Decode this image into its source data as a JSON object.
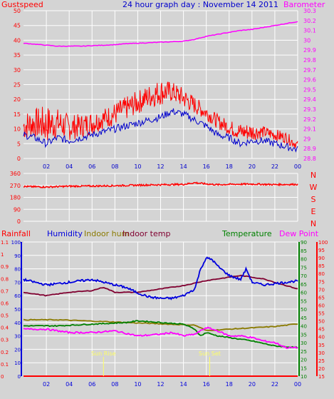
{
  "colors": {
    "gust": "#ff0000",
    "wind": "#0000cc",
    "baro": "#ff00ff",
    "dir": "#ff0000",
    "rain": "#ff0000",
    "humidity": "#0000dd",
    "indoor_hum": "#8a7a00",
    "indoor_temp": "#800030",
    "temperature": "#008000",
    "dewpoint": "#ff00ff",
    "sun": "#ffff66",
    "grid": "#ffffff",
    "bg": "#d4d4d4"
  },
  "chart_data": [
    {
      "type": "line",
      "name": "wind-baro",
      "title": "24 hour graph day : November 14 2011",
      "left_axis_label": "Gustspeed",
      "right_axis_label": "Barometer",
      "ylim_left": [
        0,
        50
      ],
      "left_ticks": [
        "0",
        "5",
        "10",
        "15",
        "20",
        "25",
        "30",
        "35",
        "40",
        "45",
        "50"
      ],
      "ylim_right": [
        28.8,
        30.3
      ],
      "right_ticks": [
        "28.8",
        "28.9",
        "29",
        "29.1",
        "29.2",
        "29.3",
        "29.4",
        "29.5",
        "29.6",
        "29.7",
        "29.8",
        "29.9",
        "30",
        "30.1",
        "30.2",
        "30.3"
      ],
      "x_ticks": [
        "02",
        "04",
        "06",
        "08",
        "10",
        "12",
        "14",
        "16",
        "18",
        "20",
        "22",
        "00"
      ],
      "gust_envelope": {
        "hours": [
          0,
          1,
          2,
          3,
          4,
          5,
          6,
          7,
          8,
          9,
          10,
          11,
          12,
          13,
          14,
          15,
          16,
          17,
          18,
          19,
          20,
          21,
          22,
          23,
          24
        ],
        "low": [
          6,
          7,
          5,
          7,
          6,
          7,
          8,
          10,
          11,
          13,
          15,
          17,
          18,
          19,
          17,
          15,
          13,
          10,
          8,
          6,
          6,
          7,
          6,
          5,
          3
        ],
        "high": [
          16,
          17,
          18,
          17,
          15,
          15,
          16,
          17,
          19,
          21,
          23,
          25,
          27,
          26,
          24,
          21,
          18,
          15,
          13,
          12,
          12,
          11,
          10,
          9,
          6
        ]
      },
      "wind_speed": {
        "hours": [
          0,
          1,
          2,
          3,
          4,
          5,
          6,
          7,
          8,
          9,
          10,
          11,
          12,
          13,
          14,
          15,
          16,
          17,
          18,
          19,
          20,
          21,
          22,
          23,
          24
        ],
        "values": [
          8,
          7,
          5,
          7,
          6,
          7,
          8,
          9,
          10,
          11,
          12,
          13,
          14,
          16,
          15,
          13,
          11,
          8,
          7,
          5,
          6,
          6,
          5,
          4,
          3
        ]
      },
      "barometer": {
        "hours": [
          0,
          1,
          2,
          3,
          4,
          5,
          6,
          7,
          8,
          9,
          10,
          11,
          12,
          13,
          14,
          15,
          16,
          17,
          18,
          19,
          20,
          21,
          22,
          23,
          24
        ],
        "values": [
          29.97,
          29.96,
          29.95,
          29.94,
          29.94,
          29.94,
          29.945,
          29.95,
          29.955,
          29.965,
          29.97,
          29.975,
          29.98,
          29.985,
          29.99,
          30.01,
          30.04,
          30.06,
          30.08,
          30.1,
          30.11,
          30.13,
          30.15,
          30.17,
          30.19
        ]
      }
    },
    {
      "type": "line",
      "name": "wind-direction",
      "ylim": [
        0,
        360
      ],
      "left_ticks": [
        "0",
        "90",
        "180",
        "270",
        "360"
      ],
      "compass_labels": [
        "N",
        "W",
        "S",
        "E",
        "N"
      ],
      "direction": {
        "hours": [
          0,
          2,
          4,
          6,
          8,
          10,
          12,
          14,
          15,
          16,
          17,
          18,
          20,
          22,
          24
        ],
        "values": [
          262,
          258,
          264,
          265,
          268,
          272,
          275,
          278,
          290,
          281,
          275,
          278,
          280,
          276,
          278
        ]
      }
    },
    {
      "type": "line",
      "name": "climate",
      "labels": [
        "Rainfall",
        "Humidity",
        "Indoor hum",
        "Indoor temp",
        "Temperature",
        "Dew Point"
      ],
      "rain_axis": {
        "ylim": [
          0,
          1.1
        ],
        "ticks": [
          "0",
          "0.1",
          "0.2",
          "0.3",
          "0.4",
          "0.5",
          "0.6",
          "0.7",
          "0.8",
          "0.9",
          "1",
          "1.1"
        ]
      },
      "humidity_axis": {
        "ylim": [
          0,
          100
        ],
        "ticks": [
          "0",
          "10",
          "20",
          "30",
          "40",
          "50",
          "60",
          "70",
          "80",
          "90",
          "100"
        ]
      },
      "temp_axis": {
        "ylim": [
          10,
          90
        ],
        "ticks": [
          "10",
          "15",
          "20",
          "25",
          "30",
          "35",
          "40",
          "45",
          "50",
          "55",
          "60",
          "65",
          "70",
          "75",
          "80",
          "85",
          "90"
        ]
      },
      "dew_axis": {
        "ylim": [
          15,
          100
        ],
        "ticks": [
          "15",
          "20",
          "25",
          "30",
          "35",
          "40",
          "45",
          "50",
          "55",
          "60",
          "65",
          "70",
          "75",
          "80",
          "85",
          "90",
          "95",
          "100"
        ]
      },
      "humidity": {
        "hours": [
          0,
          1,
          2,
          3,
          4,
          5,
          6,
          7,
          8,
          9,
          10,
          11,
          12,
          13,
          14,
          15,
          15.5,
          16,
          16.5,
          17,
          18,
          19,
          19.5,
          20,
          21,
          22,
          23,
          24
        ],
        "values": [
          72,
          70,
          68,
          69,
          70,
          71,
          72,
          70,
          68,
          66,
          62,
          59,
          58,
          58,
          60,
          65,
          80,
          88,
          87,
          82,
          75,
          72,
          80,
          70,
          68,
          69,
          70,
          71
        ]
      },
      "indoor_hum": {
        "hours": [
          0,
          3,
          6,
          9,
          12,
          15,
          16,
          18,
          20,
          22,
          23,
          24
        ],
        "values": [
          42,
          42,
          41,
          40,
          39,
          38,
          34,
          35,
          36,
          37,
          38,
          39
        ]
      },
      "indoor_temp": {
        "hours": [
          0,
          2,
          4,
          6,
          7,
          8,
          10,
          12,
          14,
          16,
          18,
          19,
          20,
          21,
          22,
          24
        ],
        "values": [
          60,
          58,
          60,
          61,
          63,
          60,
          60,
          62,
          64,
          67,
          69,
          70,
          69,
          68,
          66,
          62
        ]
      },
      "temperature": {
        "hours": [
          0,
          3,
          6,
          9,
          10,
          12,
          14,
          15,
          15.5,
          16,
          17,
          18,
          20,
          22,
          24
        ],
        "values": [
          40,
          40,
          41,
          42,
          43,
          42,
          41,
          38,
          34,
          36,
          34,
          33,
          31,
          28,
          27
        ]
      },
      "dewpoint": {
        "hours": [
          0,
          2,
          4,
          6,
          8,
          10,
          12,
          13,
          14,
          15,
          16,
          17,
          18,
          19,
          20,
          21,
          22,
          23,
          24
        ],
        "values": [
          38,
          38,
          36,
          36,
          37,
          34,
          35,
          36,
          34,
          35,
          39,
          37,
          34,
          34,
          33,
          31,
          30,
          27,
          27
        ]
      },
      "sunrise_label": "Sun Rise",
      "sunset_label": "Sun Set",
      "sunrise_hour": 7.0,
      "sunset_hour": 16.3,
      "x_ticks": [
        "02",
        "04",
        "06",
        "08",
        "10",
        "12",
        "14",
        "16",
        "18",
        "20",
        "22",
        "00"
      ]
    }
  ]
}
